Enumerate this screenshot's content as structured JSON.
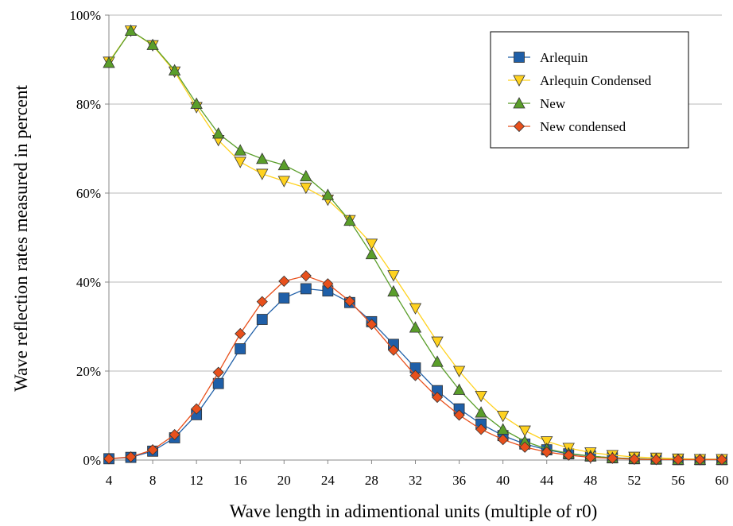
{
  "chart_data": {
    "type": "line",
    "title": "",
    "xlabel": "Wave length in adimentional units (multiple of r0)",
    "ylabel": "Wave reflection rates measured in percent",
    "xlim": [
      4,
      60
    ],
    "ylim": [
      0,
      100
    ],
    "x_ticks": [
      4,
      8,
      12,
      16,
      20,
      24,
      28,
      32,
      36,
      40,
      44,
      48,
      52,
      56,
      60
    ],
    "y_ticks": [
      0,
      20,
      40,
      60,
      80,
      100
    ],
    "y_tick_labels": [
      "0%",
      "20%",
      "40%",
      "60%",
      "80%",
      "100%"
    ],
    "grid": "horizontal",
    "legend_position": "top-right",
    "x": [
      4,
      6,
      8,
      10,
      12,
      14,
      16,
      18,
      20,
      22,
      24,
      26,
      28,
      30,
      32,
      34,
      36,
      38,
      40,
      42,
      44,
      46,
      48,
      50,
      52,
      54,
      56,
      58,
      60
    ],
    "series": [
      {
        "name": "Arlequin",
        "marker": "square",
        "color": "#1f5fa8",
        "values": [
          0.3,
          0.6,
          2.0,
          5.0,
          10.2,
          17.2,
          25.0,
          31.6,
          36.4,
          38.5,
          38.0,
          35.4,
          31.1,
          26.0,
          20.7,
          15.6,
          11.5,
          8.1,
          5.5,
          3.6,
          2.3,
          1.4,
          0.9,
          0.5,
          0.3,
          0.2,
          0.1,
          0.1,
          0.1
        ]
      },
      {
        "name": "Arlequin Condensed",
        "marker": "triangle-down",
        "color": "#ffd21f",
        "values": [
          89.5,
          96.5,
          93.2,
          87.3,
          79.3,
          71.9,
          67.0,
          64.3,
          62.7,
          61.2,
          58.5,
          53.9,
          48.6,
          41.5,
          34.1,
          26.6,
          20.0,
          14.4,
          9.9,
          6.6,
          4.2,
          2.7,
          1.7,
          1.1,
          0.7,
          0.5,
          0.3,
          0.2,
          0.2
        ]
      },
      {
        "name": "New",
        "marker": "triangle-up",
        "color": "#5a9e2a",
        "values": [
          89.3,
          96.5,
          93.3,
          87.6,
          80.1,
          73.4,
          69.6,
          67.7,
          66.3,
          63.8,
          59.6,
          53.8,
          46.3,
          37.9,
          29.8,
          22.1,
          15.8,
          10.7,
          6.9,
          4.2,
          2.5,
          1.5,
          0.9,
          0.5,
          0.3,
          0.2,
          0.1,
          0.1,
          0.1
        ]
      },
      {
        "name": "New condensed",
        "marker": "diamond",
        "color": "#e8501c",
        "values": [
          0.3,
          0.7,
          2.3,
          5.7,
          11.5,
          19.7,
          28.4,
          35.6,
          40.2,
          41.4,
          39.6,
          35.7,
          30.5,
          24.7,
          19.0,
          14.1,
          10.1,
          6.9,
          4.6,
          2.9,
          1.8,
          1.1,
          0.6,
          0.4,
          0.2,
          0.1,
          0.1,
          0.1,
          0.1
        ]
      }
    ]
  }
}
